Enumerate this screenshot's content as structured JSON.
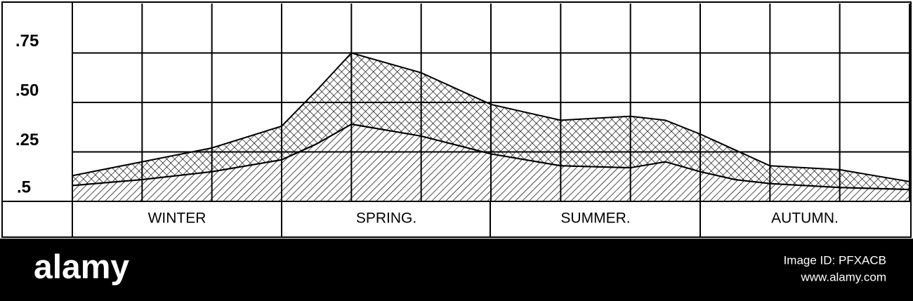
{
  "chart_data": {
    "type": "stacked_area",
    "x": [
      0,
      1,
      2,
      3,
      3.5,
      4,
      5,
      6,
      7,
      8,
      8.5,
      9,
      9.5,
      10,
      11,
      12
    ],
    "series": [
      {
        "color": "#000000",
        "pattern": "diagonal",
        "values": [
          0.08,
          0.11,
          0.15,
          0.21,
          0.29,
          0.39,
          0.33,
          0.24,
          0.18,
          0.17,
          0.2,
          0.15,
          0.11,
          0.09,
          0.07,
          0.06
        ]
      },
      {
        "color": "#000000",
        "pattern": "crosshatch",
        "values": [
          0.05,
          0.09,
          0.12,
          0.17,
          0.27,
          0.36,
          0.32,
          0.25,
          0.23,
          0.26,
          0.21,
          0.19,
          0.15,
          0.09,
          0.09,
          0.04
        ]
      }
    ],
    "xlim": [
      0,
      12
    ],
    "xticks": [
      0,
      1,
      2,
      3,
      4,
      5,
      6,
      7,
      8,
      9,
      10,
      11,
      12
    ],
    "ylim": [
      0,
      1
    ],
    "yticks": [
      {
        "value": 0.25,
        "label": ".25"
      },
      {
        "value": 0.5,
        "label": ".50"
      },
      {
        "value": 0.75,
        "label": ".75"
      }
    ],
    "bottom_label": ".5",
    "season_labels": [
      "WINTER",
      "SPRING.",
      "SUMMER.",
      "AUTUMN."
    ],
    "grid": true
  },
  "watermark": {
    "brand": "alamy",
    "image_id": "Image ID: PFXACB",
    "url": "www.alamy.com"
  }
}
